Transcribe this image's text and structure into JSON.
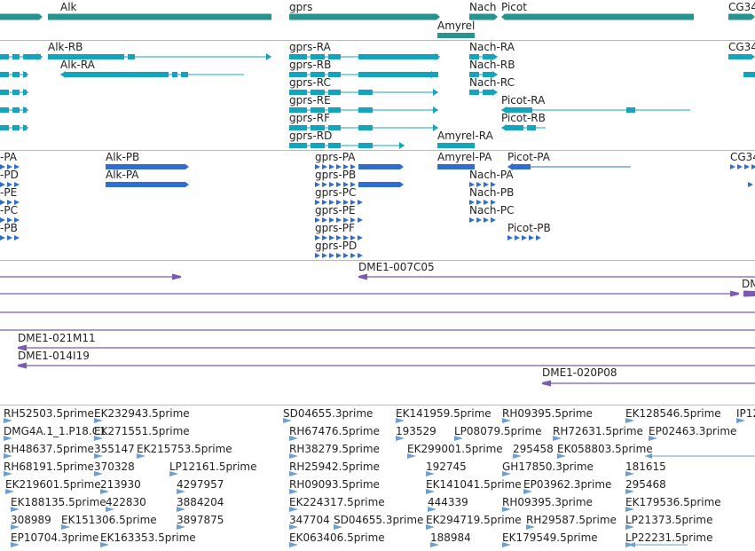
{
  "colors": {
    "gene": "#27948f",
    "transcript": "#14a5bd",
    "protein": "#2f6ed0",
    "clone": "#7d5ab1",
    "est": "#6d9fd2",
    "separator": "#bbbbbb"
  },
  "tracks": {
    "genes": {
      "labels": [
        "Alk",
        "gprs",
        "Nach",
        "Picot",
        "Amyrel",
        "CG34"
      ],
      "icon": "gene-bar-icon"
    },
    "transcripts": {
      "labels": [
        "Alk-RB",
        "Alk-RA",
        "gprs-RA",
        "gprs-RB",
        "gprs-RC",
        "gprs-RE",
        "gprs-RF",
        "gprs-RD",
        "Nach-RA",
        "Nach-RB",
        "Nach-RC",
        "Picot-RA",
        "Picot-RB",
        "Amyrel-RA",
        "CG34"
      ],
      "icon": "transcript-icon"
    },
    "proteins": {
      "labels": [
        "-PA",
        "-PD",
        "-PE",
        "-PC",
        "-PB",
        "Alk-PB",
        "Alk-PA",
        "gprs-PA",
        "gprs-PB",
        "gprs-PC",
        "gprs-PE",
        "gprs-PF",
        "gprs-PD",
        "Amyrel-PA",
        "Nach-PA",
        "Nach-PB",
        "Nach-PC",
        "Picot-PA",
        "Picot-PB",
        "CG34"
      ],
      "icon": "protein-icon"
    },
    "clones": {
      "labels": [
        "DME1-007C05",
        "DM",
        "DME1-021M11",
        "DME1-014I19",
        "DME1-020P08"
      ],
      "icon": "clone-arrow-icon"
    },
    "ests": {
      "labels": [
        "RH52503.5prime",
        "EK232943.5prime",
        "SD04655.3prime",
        "EK141959.5prime",
        "RH09395.5prime",
        "EK128546.5prime",
        "IP12",
        "DMG4A.1_1.P18.C1",
        "EK271551.5prime",
        "RH67476.5prime",
        "193529",
        "LP08079.5prime",
        "RH72631.5prime",
        "EP02463.3prime",
        "RH48637.5prime",
        "355147",
        "EK215753.5prime",
        "RH38279.5prime",
        "EK299001.5prime",
        "295458",
        "EK058803.5prime",
        "RH68191.5prime",
        "370328",
        "LP12161.5prime",
        "RH25942.5prime",
        "192745",
        "GH17850.3prime",
        "181615",
        "EK219601.5prime",
        "213930",
        "4297957",
        "RH09093.5prime",
        "EK141041.5prime",
        "EP03962.3prime",
        "295468",
        "EK188135.5prime",
        "422830",
        "3884204",
        "EK224317.5prime",
        "444339",
        "RH09395.3prime",
        "EK179536.5prime",
        "308989",
        "EK151306.5prime",
        "3897875",
        "347704",
        "SD04655.3prime",
        "EK294719.5prime",
        "RH29587.5prime",
        "LP21373.5prime",
        "EP10704.3prime",
        "EK163353.5prime",
        "EK063406.5prime",
        "188984",
        "EK179549.5prime",
        "LP22231.5prime"
      ],
      "icon": "est-arrow-icon"
    }
  }
}
